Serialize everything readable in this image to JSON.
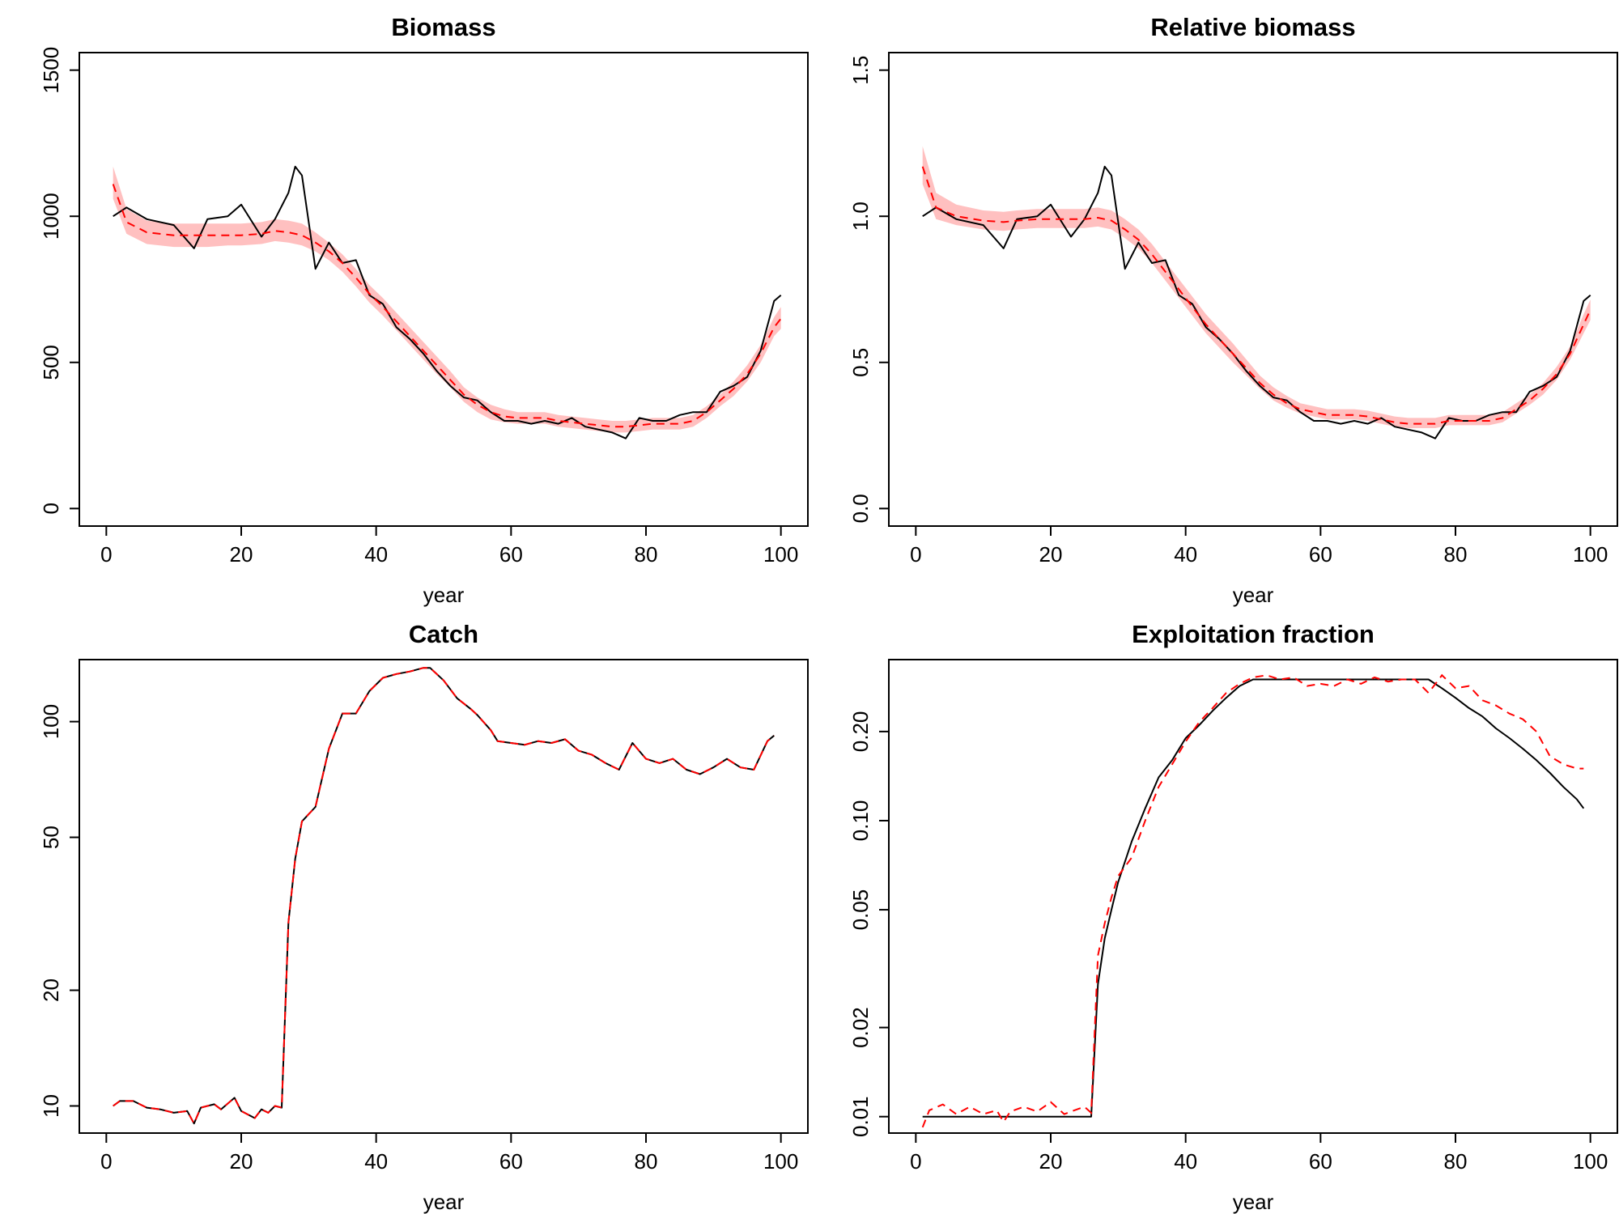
{
  "colors": {
    "observed": "#000000",
    "estimate": "#ff0000",
    "ci_band": "#ffc0c0"
  },
  "chart_data": [
    {
      "type": "line",
      "title": "Biomass",
      "xlabel": "year",
      "ylabel": "",
      "xlim": [
        0,
        100
      ],
      "ylim": [
        0,
        1500
      ],
      "xticks": [
        "0",
        "20",
        "40",
        "60",
        "80",
        "100"
      ],
      "yticks": [
        "0",
        "500",
        "1000",
        "1500"
      ],
      "x": [
        1,
        3,
        6,
        10,
        13,
        15,
        18,
        20,
        23,
        25,
        27,
        28,
        29,
        31,
        33,
        35,
        37,
        39,
        41,
        43,
        45,
        47,
        49,
        51,
        53,
        55,
        57,
        59,
        61,
        63,
        65,
        67,
        69,
        71,
        73,
        75,
        77,
        79,
        81,
        83,
        85,
        87,
        89,
        91,
        93,
        95,
        97,
        99,
        100
      ],
      "series": [
        {
          "values": [
            1000,
            1030,
            990,
            970,
            890,
            990,
            1000,
            1040,
            930,
            990,
            1080,
            1170,
            1140,
            820,
            910,
            840,
            850,
            730,
            700,
            620,
            580,
            530,
            470,
            420,
            380,
            370,
            330,
            300,
            300,
            290,
            300,
            290,
            310,
            280,
            270,
            260,
            240,
            310,
            300,
            300,
            320,
            330,
            330,
            400,
            420,
            450,
            540,
            710,
            730
          ]
        },
        {
          "values": [
            1110,
            980,
            945,
            935,
            935,
            935,
            935,
            935,
            940,
            950,
            945,
            940,
            935,
            910,
            880,
            840,
            790,
            735,
            690,
            640,
            590,
            540,
            490,
            440,
            390,
            355,
            330,
            315,
            310,
            310,
            310,
            300,
            295,
            290,
            285,
            280,
            280,
            285,
            290,
            290,
            290,
            300,
            330,
            370,
            410,
            460,
            530,
            620,
            650
          ],
          "lower": [
            1060,
            940,
            905,
            895,
            895,
            895,
            900,
            900,
            905,
            915,
            910,
            905,
            900,
            880,
            850,
            810,
            760,
            705,
            660,
            610,
            560,
            510,
            460,
            415,
            365,
            330,
            305,
            295,
            290,
            290,
            290,
            280,
            275,
            270,
            265,
            260,
            260,
            265,
            270,
            270,
            270,
            280,
            310,
            350,
            385,
            435,
            500,
            590,
            615
          ],
          "upper": [
            1170,
            1025,
            985,
            975,
            975,
            975,
            975,
            975,
            980,
            990,
            985,
            980,
            975,
            945,
            910,
            870,
            820,
            765,
            720,
            670,
            620,
            570,
            520,
            470,
            415,
            380,
            355,
            340,
            330,
            330,
            330,
            320,
            315,
            310,
            305,
            300,
            300,
            305,
            310,
            310,
            310,
            320,
            350,
            390,
            435,
            490,
            560,
            655,
            690
          ]
        }
      ]
    },
    {
      "type": "line",
      "title": "Relative biomass",
      "xlabel": "year",
      "ylabel": "",
      "xlim": [
        0,
        100
      ],
      "ylim": [
        0,
        1.5
      ],
      "xticks": [
        "0",
        "20",
        "40",
        "60",
        "80",
        "100"
      ],
      "yticks": [
        "0.0",
        "0.5",
        "1.0",
        "1.5"
      ],
      "x": [
        1,
        3,
        6,
        10,
        13,
        15,
        18,
        20,
        23,
        25,
        27,
        28,
        29,
        31,
        33,
        35,
        37,
        39,
        41,
        43,
        45,
        47,
        49,
        51,
        53,
        55,
        57,
        59,
        61,
        63,
        65,
        67,
        69,
        71,
        73,
        75,
        77,
        79,
        81,
        83,
        85,
        87,
        89,
        91,
        93,
        95,
        97,
        99,
        100
      ],
      "series": [
        {
          "values": [
            1.0,
            1.03,
            0.99,
            0.97,
            0.89,
            0.99,
            1.0,
            1.04,
            0.93,
            0.99,
            1.08,
            1.17,
            1.14,
            0.82,
            0.91,
            0.84,
            0.85,
            0.73,
            0.7,
            0.62,
            0.58,
            0.53,
            0.47,
            0.42,
            0.38,
            0.37,
            0.33,
            0.3,
            0.3,
            0.29,
            0.3,
            0.29,
            0.31,
            0.28,
            0.27,
            0.26,
            0.24,
            0.31,
            0.3,
            0.3,
            0.32,
            0.33,
            0.33,
            0.4,
            0.42,
            0.45,
            0.54,
            0.71,
            0.73
          ]
        },
        {
          "values": [
            1.17,
            1.03,
            1.0,
            0.985,
            0.98,
            0.985,
            0.99,
            0.99,
            0.99,
            0.99,
            0.995,
            0.99,
            0.985,
            0.955,
            0.92,
            0.87,
            0.81,
            0.75,
            0.69,
            0.63,
            0.58,
            0.53,
            0.48,
            0.43,
            0.39,
            0.36,
            0.34,
            0.33,
            0.32,
            0.32,
            0.32,
            0.315,
            0.305,
            0.295,
            0.29,
            0.29,
            0.29,
            0.3,
            0.3,
            0.3,
            0.3,
            0.31,
            0.34,
            0.37,
            0.41,
            0.46,
            0.53,
            0.63,
            0.68
          ],
          "lower": [
            1.11,
            0.99,
            0.97,
            0.955,
            0.95,
            0.955,
            0.96,
            0.96,
            0.96,
            0.96,
            0.965,
            0.96,
            0.955,
            0.925,
            0.89,
            0.84,
            0.78,
            0.72,
            0.66,
            0.6,
            0.55,
            0.5,
            0.455,
            0.41,
            0.37,
            0.345,
            0.325,
            0.315,
            0.305,
            0.305,
            0.305,
            0.3,
            0.29,
            0.28,
            0.275,
            0.275,
            0.275,
            0.285,
            0.285,
            0.285,
            0.285,
            0.295,
            0.325,
            0.355,
            0.39,
            0.44,
            0.51,
            0.6,
            0.645
          ],
          "upper": [
            1.24,
            1.08,
            1.04,
            1.02,
            1.015,
            1.02,
            1.025,
            1.025,
            1.025,
            1.025,
            1.03,
            1.025,
            1.02,
            0.99,
            0.955,
            0.905,
            0.845,
            0.785,
            0.725,
            0.665,
            0.615,
            0.565,
            0.51,
            0.455,
            0.415,
            0.385,
            0.36,
            0.35,
            0.34,
            0.34,
            0.34,
            0.335,
            0.325,
            0.315,
            0.31,
            0.31,
            0.31,
            0.32,
            0.32,
            0.32,
            0.32,
            0.33,
            0.36,
            0.39,
            0.43,
            0.485,
            0.555,
            0.665,
            0.715
          ]
        }
      ]
    },
    {
      "type": "line",
      "title": "Catch",
      "xlabel": "year",
      "ylabel": "",
      "log_y": true,
      "xlim": [
        0,
        100
      ],
      "ylim": [
        8.5,
        145
      ],
      "xticks": [
        "0",
        "20",
        "40",
        "60",
        "80",
        "100"
      ],
      "yticks": [
        "10",
        "20",
        "50",
        "100"
      ],
      "x": [
        1,
        2,
        4,
        6,
        8,
        10,
        12,
        13,
        14,
        16,
        17,
        19,
        20,
        22,
        23,
        24,
        25,
        26,
        27,
        28,
        29,
        31,
        33,
        35,
        37,
        39,
        41,
        43,
        45,
        47,
        48,
        50,
        52,
        54,
        55,
        57,
        58,
        60,
        62,
        64,
        66,
        68,
        70,
        72,
        74,
        76,
        78,
        80,
        82,
        84,
        86,
        88,
        90,
        92,
        94,
        96,
        98,
        99
      ],
      "series": [
        {
          "values": [
            10,
            10.3,
            10.3,
            9.9,
            9.8,
            9.6,
            9.7,
            9.0,
            9.9,
            10.1,
            9.8,
            10.5,
            9.7,
            9.3,
            9.8,
            9.6,
            10.0,
            9.9,
            30,
            44,
            55,
            60,
            85,
            105,
            105,
            120,
            130,
            133,
            135,
            138,
            138,
            128,
            115,
            108,
            104,
            95,
            89,
            88,
            87,
            89,
            88,
            90,
            84,
            82,
            78,
            75,
            88,
            80,
            78,
            80,
            75,
            73,
            76,
            80,
            76,
            75,
            89,
            92
          ]
        },
        {
          "values": [
            10,
            10.3,
            10.3,
            9.9,
            9.8,
            9.6,
            9.7,
            9.0,
            9.9,
            10.1,
            9.8,
            10.5,
            9.7,
            9.3,
            9.8,
            9.6,
            10.0,
            9.9,
            30,
            44,
            55,
            60,
            85,
            105,
            105,
            120,
            130,
            133,
            135,
            138,
            138,
            128,
            115,
            108,
            104,
            95,
            89,
            88,
            87,
            89,
            88,
            90,
            84,
            82,
            78,
            75,
            88,
            80,
            78,
            80,
            75,
            73,
            76,
            80,
            76,
            75,
            89,
            92
          ]
        }
      ]
    },
    {
      "type": "line",
      "title": "Exploitation fraction",
      "xlabel": "year",
      "ylabel": "",
      "log_y": true,
      "xlim": [
        0,
        100
      ],
      "ylim": [
        0.0088,
        0.35
      ],
      "xticks": [
        "0",
        "20",
        "40",
        "60",
        "80",
        "100"
      ],
      "yticks": [
        "0.01",
        "0.02",
        "0.05",
        "0.10",
        "0.20"
      ],
      "x": [
        1,
        2,
        4,
        6,
        8,
        10,
        12,
        13,
        14,
        16,
        18,
        20,
        22,
        24,
        25,
        26,
        27,
        28,
        29,
        30,
        32,
        34,
        36,
        38,
        40,
        42,
        44,
        46,
        48,
        50,
        52,
        54,
        56,
        58,
        60,
        62,
        64,
        66,
        68,
        70,
        72,
        74,
        76,
        78,
        80,
        82,
        84,
        86,
        88,
        90,
        92,
        94,
        96,
        98,
        99
      ],
      "series": [
        {
          "values": [
            0.01,
            0.01,
            0.01,
            0.01,
            0.01,
            0.01,
            0.01,
            0.01,
            0.01,
            0.01,
            0.01,
            0.01,
            0.01,
            0.01,
            0.01,
            0.01,
            0.028,
            0.04,
            0.05,
            0.062,
            0.085,
            0.11,
            0.14,
            0.16,
            0.19,
            0.21,
            0.235,
            0.26,
            0.285,
            0.3,
            0.3,
            0.3,
            0.3,
            0.3,
            0.3,
            0.3,
            0.3,
            0.3,
            0.3,
            0.3,
            0.3,
            0.3,
            0.3,
            0.28,
            0.26,
            0.24,
            0.225,
            0.205,
            0.19,
            0.175,
            0.16,
            0.145,
            0.13,
            0.118,
            0.11
          ]
        },
        {
          "values": [
            0.0092,
            0.0105,
            0.011,
            0.0102,
            0.0108,
            0.0102,
            0.0105,
            0.0096,
            0.0104,
            0.0108,
            0.0104,
            0.0112,
            0.0102,
            0.0106,
            0.0108,
            0.0103,
            0.035,
            0.045,
            0.055,
            0.065,
            0.075,
            0.1,
            0.13,
            0.155,
            0.185,
            0.215,
            0.24,
            0.27,
            0.29,
            0.305,
            0.31,
            0.3,
            0.305,
            0.285,
            0.29,
            0.285,
            0.3,
            0.29,
            0.305,
            0.295,
            0.3,
            0.3,
            0.27,
            0.31,
            0.28,
            0.285,
            0.255,
            0.245,
            0.23,
            0.22,
            0.2,
            0.165,
            0.155,
            0.15,
            0.15
          ]
        }
      ]
    }
  ]
}
